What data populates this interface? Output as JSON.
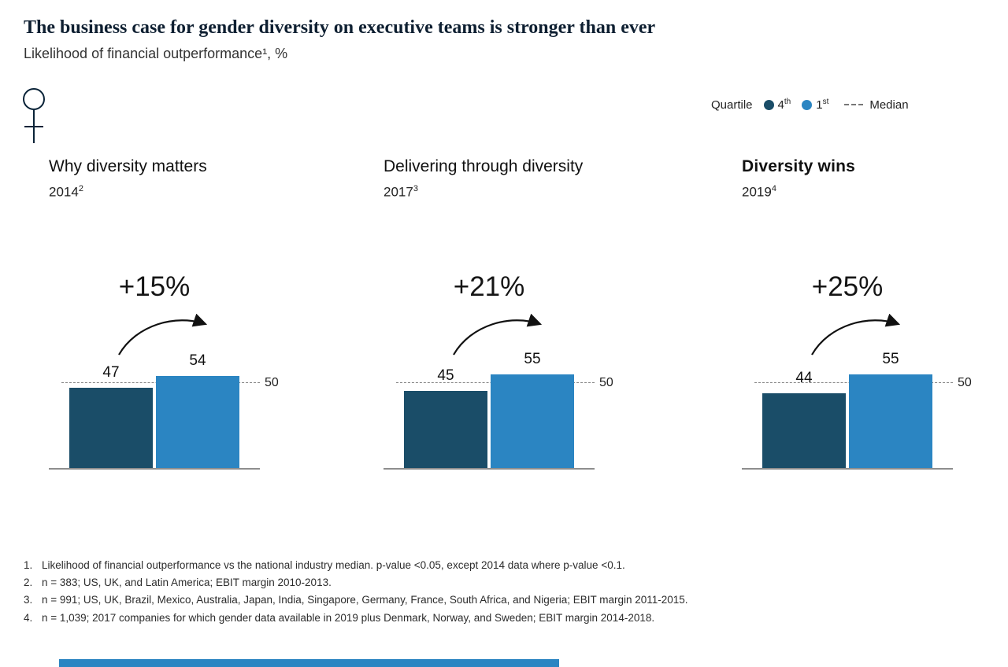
{
  "page": {
    "title": "The business case for gender diversity on executive teams is stronger than ever",
    "subtitle": "Likelihood of financial outperformance¹, %",
    "accent_strip_color": "#2b85c2"
  },
  "icons": {
    "venus": "female-gender-symbol"
  },
  "legend": {
    "label": "Quartile",
    "items": [
      {
        "label": "4",
        "sup": "th",
        "color": "#1a4d68"
      },
      {
        "label": "1",
        "sup": "st",
        "color": "#2b85c2"
      }
    ],
    "median_label": "Median"
  },
  "chart_data": {
    "type": "bar",
    "title": "Likelihood of financial outperformance, %",
    "series": [
      "4th quartile",
      "1st quartile"
    ],
    "colors": {
      "q4": "#1a4d68",
      "q1": "#2b85c2"
    },
    "ylim": [
      0,
      60
    ],
    "groups": [
      {
        "title": "Why diversity matters",
        "year": "2014",
        "year_sup": "2",
        "delta": "+15%",
        "values": {
          "q4": 47,
          "q1": 54
        },
        "median": 50
      },
      {
        "title": "Delivering through diversity",
        "year": "2017",
        "year_sup": "3",
        "delta": "+21%",
        "values": {
          "q4": 45,
          "q1": 55
        },
        "median": 50
      },
      {
        "title": "Diversity wins",
        "year": "2019",
        "year_sup": "4",
        "delta": "+25%",
        "values": {
          "q4": 44,
          "q1": 55
        },
        "median": 50
      }
    ]
  },
  "footnotes": [
    {
      "num": "1.",
      "text": "Likelihood of financial outperformance vs the national industry median. p-value <0.05, except 2014 data where p-value <0.1."
    },
    {
      "num": "2.",
      "text": "n = 383; US, UK, and Latin America; EBIT margin 2010-2013."
    },
    {
      "num": "3.",
      "text": "n = 991; US, UK, Brazil, Mexico, Australia, Japan, India, Singapore, Germany, France, South Africa, and Nigeria; EBIT margin 2011-2015."
    },
    {
      "num": "4.",
      "text": "n = 1,039; 2017 companies for which gender data available in 2019 plus Denmark, Norway, and Sweden; EBIT margin 2014-2018."
    }
  ]
}
